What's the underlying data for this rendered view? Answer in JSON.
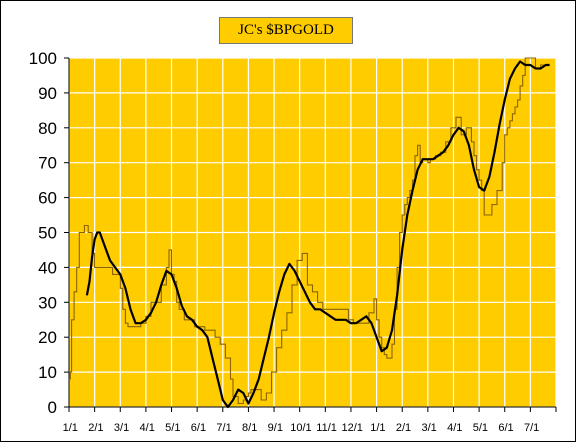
{
  "chart_data": {
    "type": "line",
    "title": "JC's $BPGOLD",
    "xlabel": "",
    "ylabel": "",
    "ylim": [
      0,
      100
    ],
    "yticks": [
      0,
      10,
      20,
      30,
      40,
      50,
      60,
      70,
      80,
      90,
      100
    ],
    "xlim": [
      0,
      19
    ],
    "x_tick_labels": [
      "1/1",
      "2/1",
      "3/1",
      "4/1",
      "5/1",
      "6/1",
      "7/1",
      "8/1",
      "9/1",
      "10/1",
      "11/1",
      "12/1",
      "1/1",
      "2/1",
      "3/1",
      "4/1",
      "5/1",
      "6/1",
      "7/1"
    ],
    "grid": true,
    "legend": "none",
    "colors": {
      "plot_background": "#ffcc00",
      "grid": "#ffffff",
      "raw_line": "#8c6400",
      "smooth_line": "#000000",
      "title_box": "#ffcc00"
    },
    "series": [
      {
        "style": "thin-step",
        "x": [
          0.0,
          0.05,
          0.1,
          0.2,
          0.3,
          0.4,
          0.5,
          0.6,
          0.75,
          0.9,
          1.0,
          1.1,
          1.2,
          1.3,
          1.5,
          1.7,
          2.0,
          2.1,
          2.2,
          2.3,
          2.4,
          2.6,
          2.8,
          3.0,
          3.2,
          3.4,
          3.6,
          3.8,
          3.9,
          4.0,
          4.1,
          4.2,
          4.3,
          4.5,
          4.7,
          4.9,
          5.1,
          5.3,
          5.5,
          5.7,
          5.9,
          6.1,
          6.3,
          6.4,
          6.5,
          6.6,
          6.7,
          6.8,
          6.9,
          7.0,
          7.1,
          7.2,
          7.3,
          7.5,
          7.7,
          7.9,
          8.1,
          8.3,
          8.5,
          8.7,
          8.9,
          9.1,
          9.3,
          9.5,
          9.7,
          9.9,
          10.1,
          10.3,
          10.5,
          10.7,
          10.9,
          11.1,
          11.3,
          11.5,
          11.7,
          11.9,
          12.0,
          12.1,
          12.2,
          12.3,
          12.4,
          12.5,
          12.6,
          12.7,
          12.8,
          12.9,
          13.0,
          13.1,
          13.2,
          13.3,
          13.4,
          13.5,
          13.6,
          13.7,
          13.8,
          13.9,
          14.0,
          14.1,
          14.2,
          14.3,
          14.5,
          14.7,
          14.9,
          15.1,
          15.3,
          15.5,
          15.7,
          15.8,
          15.9,
          16.0,
          16.1,
          16.2,
          16.3,
          16.5,
          16.7,
          16.9,
          17.0,
          17.1,
          17.2,
          17.3,
          17.4,
          17.5,
          17.6,
          17.7,
          17.8,
          17.9,
          18.0,
          18.1,
          18.2,
          18.3,
          18.4,
          18.5,
          18.6,
          18.7
        ],
        "y": [
          8,
          10,
          25,
          33,
          40,
          50,
          50,
          52,
          50,
          44,
          40,
          40,
          40,
          40,
          40,
          38,
          34,
          28,
          24,
          23,
          23,
          23,
          24,
          26,
          30,
          30,
          35,
          40,
          45,
          38,
          36,
          30,
          28,
          25,
          25,
          23,
          23,
          22,
          22,
          20,
          18,
          14,
          8,
          3,
          3,
          1,
          1,
          2,
          3,
          4,
          5,
          5,
          5,
          2,
          4,
          10,
          17,
          22,
          27,
          35,
          42,
          44,
          35,
          33,
          30,
          28,
          28,
          28,
          28,
          28,
          25,
          24,
          24,
          24,
          27,
          31,
          25,
          20,
          17,
          15,
          14,
          14,
          18,
          28,
          40,
          50,
          55,
          58,
          60,
          62,
          65,
          72,
          75,
          70,
          71,
          71,
          70,
          71,
          71,
          72,
          73,
          76,
          80,
          83,
          78,
          80,
          76,
          72,
          68,
          65,
          62,
          55,
          55,
          58,
          62,
          70,
          78,
          80,
          82,
          84,
          86,
          88,
          92,
          95,
          100,
          100,
          100,
          100,
          97,
          97,
          98,
          98,
          98,
          98
        ]
      },
      {
        "style": "thick-smooth",
        "x": [
          0.7,
          0.8,
          0.9,
          1.0,
          1.1,
          1.2,
          1.4,
          1.6,
          1.8,
          2.0,
          2.2,
          2.4,
          2.6,
          2.8,
          3.0,
          3.2,
          3.4,
          3.6,
          3.8,
          4.0,
          4.2,
          4.4,
          4.6,
          4.8,
          5.0,
          5.2,
          5.4,
          5.6,
          5.8,
          6.0,
          6.2,
          6.4,
          6.6,
          6.8,
          7.0,
          7.2,
          7.4,
          7.6,
          7.8,
          8.0,
          8.2,
          8.4,
          8.6,
          8.8,
          9.0,
          9.2,
          9.4,
          9.6,
          9.8,
          10.0,
          10.2,
          10.4,
          10.6,
          10.8,
          11.0,
          11.2,
          11.4,
          11.6,
          11.8,
          12.0,
          12.2,
          12.4,
          12.6,
          12.8,
          13.0,
          13.2,
          13.4,
          13.6,
          13.8,
          14.0,
          14.2,
          14.4,
          14.6,
          14.8,
          15.0,
          15.2,
          15.4,
          15.6,
          15.8,
          16.0,
          16.2,
          16.4,
          16.6,
          16.8,
          17.0,
          17.2,
          17.4,
          17.6,
          17.8,
          18.0,
          18.2,
          18.4,
          18.6,
          18.75
        ],
        "y": [
          32,
          36,
          43,
          48,
          50,
          50,
          46,
          42,
          40,
          38,
          34,
          28,
          24,
          24,
          25,
          27,
          30,
          35,
          39,
          38,
          34,
          29,
          26,
          25,
          23,
          22,
          20,
          14,
          8,
          2,
          0,
          2,
          5,
          4,
          1,
          4,
          8,
          14,
          20,
          27,
          33,
          38,
          41,
          39,
          36,
          33,
          30,
          28,
          28,
          27,
          26,
          25,
          25,
          25,
          24,
          24,
          25,
          26,
          24,
          20,
          16,
          17,
          22,
          32,
          45,
          55,
          62,
          68,
          71,
          71,
          71,
          72,
          73,
          75,
          78,
          80,
          79,
          75,
          68,
          63,
          62,
          66,
          73,
          81,
          88,
          94,
          97,
          99,
          98,
          98,
          97,
          97,
          98,
          98
        ]
      }
    ]
  }
}
